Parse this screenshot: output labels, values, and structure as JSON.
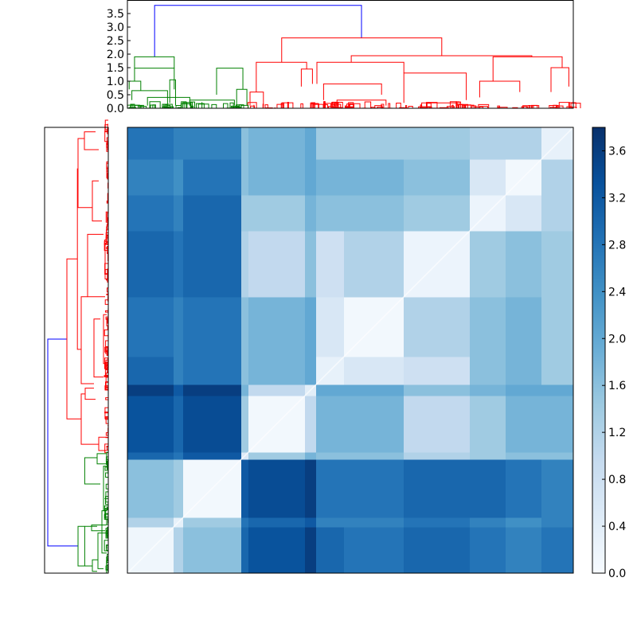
{
  "chart_data": {
    "type": "heatmap",
    "title": "",
    "description_kind": "clustered distance matrix with dendrograms",
    "group_sizes": [
      58,
      12,
      73,
      9,
      71,
      14,
      35,
      75,
      83,
      45,
      45,
      40
    ],
    "matrix": [
      [
        0.15,
        1.2,
        1.6,
        3.0,
        3.3,
        3.6,
        3.0,
        2.8,
        3.0,
        2.8,
        2.6,
        2.8
      ],
      [
        1.2,
        0.3,
        1.4,
        2.8,
        3.0,
        3.2,
        2.6,
        2.6,
        2.8,
        2.6,
        2.4,
        2.6
      ],
      [
        1.6,
        1.4,
        0.1,
        3.2,
        3.4,
        3.6,
        2.8,
        2.8,
        3.0,
        3.0,
        2.8,
        2.6
      ],
      [
        3.0,
        2.8,
        3.2,
        0.5,
        1.4,
        1.8,
        1.6,
        1.6,
        1.2,
        1.4,
        1.6,
        1.6
      ],
      [
        3.3,
        3.0,
        3.4,
        1.4,
        0.1,
        1.0,
        1.8,
        1.8,
        1.0,
        1.4,
        1.8,
        1.8
      ],
      [
        3.6,
        3.2,
        3.6,
        1.8,
        1.0,
        0.4,
        2.0,
        2.0,
        1.6,
        1.8,
        2.0,
        2.0
      ],
      [
        3.0,
        2.6,
        2.8,
        1.6,
        1.8,
        2.0,
        0.3,
        0.6,
        0.8,
        1.6,
        1.8,
        1.4
      ],
      [
        2.8,
        2.6,
        2.8,
        1.6,
        1.8,
        2.0,
        0.6,
        0.1,
        1.2,
        1.6,
        1.8,
        1.4
      ],
      [
        3.0,
        2.8,
        3.0,
        1.2,
        1.0,
        1.6,
        0.8,
        1.2,
        0.2,
        1.4,
        1.6,
        1.4
      ],
      [
        2.8,
        2.6,
        3.0,
        1.4,
        1.4,
        1.8,
        1.6,
        1.6,
        1.4,
        0.2,
        0.6,
        1.2
      ],
      [
        2.6,
        2.4,
        2.8,
        1.6,
        1.8,
        2.0,
        1.8,
        1.8,
        1.6,
        0.6,
        0.1,
        1.2
      ],
      [
        2.8,
        2.6,
        2.6,
        1.6,
        1.8,
        2.0,
        1.4,
        1.4,
        1.4,
        1.2,
        1.2,
        0.3
      ]
    ],
    "colormap": [
      "#f7fbff",
      "#deebf7",
      "#c6dbef",
      "#9ecae1",
      "#6baed6",
      "#4292c6",
      "#2171b5",
      "#08519c",
      "#08306b"
    ],
    "colorbar": {
      "range": [
        0,
        3.8
      ],
      "ticks": [
        "0.0",
        "0.4",
        "0.8",
        "1.2",
        "1.6",
        "2.0",
        "2.4",
        "2.8",
        "3.2",
        "3.6"
      ]
    },
    "dendrogram": {
      "leaf_range": [
        0,
        100
      ],
      "height_range": [
        0,
        4.0
      ],
      "height_ticks": [
        "0.0",
        "0.5",
        "1.0",
        "1.5",
        "2.0",
        "2.5",
        "3.0",
        "3.5"
      ],
      "colors": {
        "root": "#0000ff",
        "cluster1": "#008000",
        "cluster2": "#ff0000"
      },
      "links": [
        {
          "a": 6.1,
          "b": 52.5,
          "ha": 1.9,
          "hb": 2.6,
          "h": 3.8,
          "c": "root"
        },
        {
          "a": 1.6,
          "b": 10.5,
          "ha": 1.0,
          "hb": 0.7,
          "h": 1.48,
          "c": "cluster1"
        },
        {
          "a": 20.0,
          "b": 25.9,
          "ha": 0.5,
          "hb": 0.7,
          "h": 1.48,
          "c": "cluster1"
        },
        {
          "a": 1.6,
          "b": 10.5,
          "ha": 1.48,
          "hb": 1.48,
          "h": 1.9,
          "c": "cluster1"
        },
        {
          "a": 0.4,
          "b": 3.0,
          "ha": 0.7,
          "hb": 0.65,
          "h": 1.0,
          "c": "cluster1"
        },
        {
          "a": 1.0,
          "b": 9.0,
          "ha": 0.3,
          "hb": 0.1,
          "h": 0.65,
          "c": "cluster1"
        },
        {
          "a": 4.5,
          "b": 14.0,
          "ha": 0.1,
          "hb": 0.1,
          "h": 0.4,
          "c": "cluster1"
        },
        {
          "a": 9.5,
          "b": 10.8,
          "ha": 0.2,
          "hb": 0.1,
          "h": 1.05,
          "c": "cluster1"
        },
        {
          "a": 14.0,
          "b": 24.0,
          "ha": 0.1,
          "hb": 0.1,
          "h": 0.3,
          "c": "cluster1"
        },
        {
          "a": 24.5,
          "b": 26.8,
          "ha": 0.1,
          "hb": 0.1,
          "h": 0.7,
          "c": "cluster1"
        },
        {
          "a": 28.9,
          "b": 40.2,
          "ha": 0.6,
          "hb": 1.45,
          "h": 1.7,
          "c": "cluster2"
        },
        {
          "a": 27.5,
          "b": 30.5,
          "ha": 0.1,
          "hb": 0.1,
          "h": 0.6,
          "c": "cluster2"
        },
        {
          "a": 39.0,
          "b": 41.5,
          "ha": 0.8,
          "hb": 0.9,
          "h": 1.45,
          "c": "cluster2"
        },
        {
          "a": 50.2,
          "b": 90.7,
          "ha": 1.7,
          "hb": 1.9,
          "h": 1.94,
          "c": "cluster2"
        },
        {
          "a": 34.6,
          "b": 70.5,
          "ha": 1.7,
          "hb": 1.94,
          "h": 2.6,
          "c": "cluster2"
        },
        {
          "a": 42.5,
          "b": 62.0,
          "ha": 0.9,
          "hb": 1.3,
          "h": 1.7,
          "c": "cluster2"
        },
        {
          "a": 44.0,
          "b": 57.0,
          "ha": 0.3,
          "hb": 0.5,
          "h": 0.9,
          "c": "cluster2"
        },
        {
          "a": 62.0,
          "b": 76.0,
          "ha": 0.2,
          "hb": 0.3,
          "h": 1.3,
          "c": "cluster2"
        },
        {
          "a": 82.0,
          "b": 97.5,
          "ha": 1.0,
          "hb": 1.5,
          "h": 1.9,
          "c": "cluster2"
        },
        {
          "a": 79.0,
          "b": 88.0,
          "ha": 0.4,
          "hb": 0.6,
          "h": 1.0,
          "c": "cluster2"
        },
        {
          "a": 95.0,
          "b": 99.0,
          "ha": 0.6,
          "hb": 0.8,
          "h": 1.5,
          "c": "cluster2"
        },
        {
          "a": 47.0,
          "b": 58.0,
          "ha": 0.1,
          "hb": 0.1,
          "h": 0.3,
          "c": "cluster2"
        },
        {
          "a": 66.0,
          "b": 74.0,
          "ha": 0.05,
          "hb": 0.1,
          "h": 0.2,
          "c": "cluster2"
        }
      ]
    }
  }
}
